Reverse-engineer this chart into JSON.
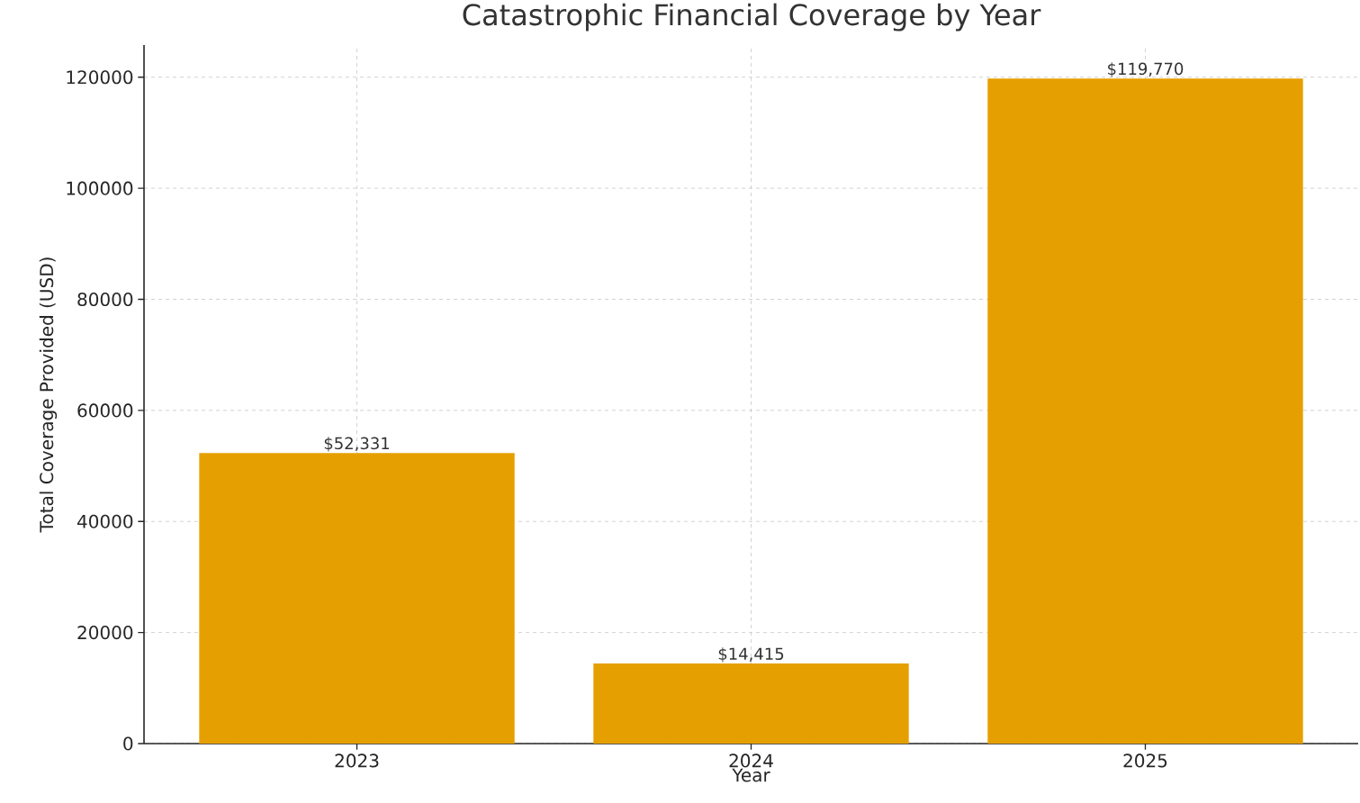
{
  "chart_data": {
    "type": "bar",
    "title": "Catastrophic Financial Coverage by Year",
    "xlabel": "Year",
    "ylabel": "Total Coverage Provided (USD)",
    "categories": [
      "2023",
      "2024",
      "2025"
    ],
    "values": [
      52331,
      14415,
      119770
    ],
    "value_labels": [
      "$52,331",
      "$14,415",
      "$119,770"
    ],
    "color": "#e69f00",
    "ylim": [
      0,
      125800
    ],
    "yticks": [
      0,
      20000,
      40000,
      60000,
      80000,
      100000,
      120000
    ],
    "grid": true
  }
}
